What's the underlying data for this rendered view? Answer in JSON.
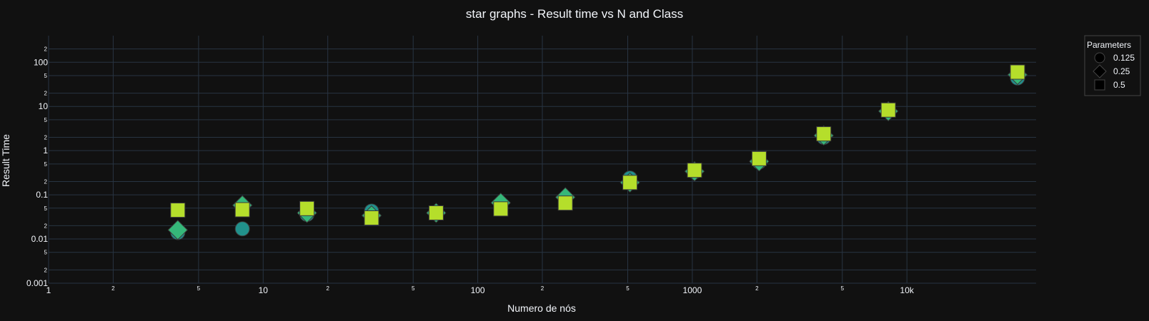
{
  "chart_data": {
    "type": "scatter",
    "title": "star graphs - Result time vs N and Class",
    "xlabel": "Numero de nós",
    "ylabel": "Result Time",
    "x_scale": "log",
    "y_scale": "log",
    "xlim": [
      1,
      40000
    ],
    "ylim": [
      0.001,
      400
    ],
    "x_ticks": {
      "major": [
        {
          "v": 1,
          "label": "1"
        },
        {
          "v": 10,
          "label": "10"
        },
        {
          "v": 100,
          "label": "100"
        },
        {
          "v": 1000,
          "label": "1000"
        },
        {
          "v": 10000,
          "label": "10k"
        }
      ],
      "minor": [
        {
          "v": 2,
          "label": "2"
        },
        {
          "v": 5,
          "label": "5"
        },
        {
          "v": 20,
          "label": "2"
        },
        {
          "v": 50,
          "label": "5"
        },
        {
          "v": 200,
          "label": "2"
        },
        {
          "v": 500,
          "label": "5"
        },
        {
          "v": 2000,
          "label": "2"
        },
        {
          "v": 5000,
          "label": "5"
        }
      ]
    },
    "y_ticks": {
      "major": [
        {
          "v": 0.001,
          "label": "0.001"
        },
        {
          "v": 0.01,
          "label": "0.01"
        },
        {
          "v": 0.1,
          "label": "0.1"
        },
        {
          "v": 1,
          "label": "1"
        },
        {
          "v": 10,
          "label": "10"
        },
        {
          "v": 100,
          "label": "100"
        }
      ],
      "minor": [
        {
          "v": 0.002,
          "label": "2"
        },
        {
          "v": 0.005,
          "label": "5"
        },
        {
          "v": 0.02,
          "label": "2"
        },
        {
          "v": 0.05,
          "label": "5"
        },
        {
          "v": 0.2,
          "label": "2"
        },
        {
          "v": 0.5,
          "label": "5"
        },
        {
          "v": 2,
          "label": "2"
        },
        {
          "v": 5,
          "label": "5"
        },
        {
          "v": 20,
          "label": "2"
        },
        {
          "v": 50,
          "label": "5"
        },
        {
          "v": 200,
          "label": "2"
        }
      ]
    },
    "grid": true,
    "legend": {
      "title": "Parameters",
      "position": "top-right"
    },
    "series": [
      {
        "name": "0.125",
        "marker": "circle",
        "x": [
          4,
          8,
          16,
          32,
          64,
          128,
          256,
          512,
          1024,
          2048,
          4096,
          8192,
          32768
        ],
        "y": [
          0.014,
          0.017,
          0.036,
          0.043,
          0.038,
          0.062,
          0.085,
          0.24,
          0.33,
          0.55,
          2.0,
          8.0,
          44
        ]
      },
      {
        "name": "0.25",
        "marker": "diamond",
        "x": [
          4,
          8,
          16,
          32,
          64,
          128,
          256,
          512,
          1024,
          2048,
          4096,
          8192,
          32768
        ],
        "y": [
          0.016,
          0.058,
          0.039,
          0.034,
          0.039,
          0.066,
          0.088,
          0.19,
          0.34,
          0.57,
          2.2,
          7.8,
          52
        ]
      },
      {
        "name": "0.5",
        "marker": "square",
        "x": [
          4,
          8,
          16,
          32,
          64,
          128,
          256,
          512,
          1024,
          2048,
          4096,
          8192,
          32768
        ],
        "y": [
          0.045,
          0.046,
          0.049,
          0.03,
          0.039,
          0.048,
          0.065,
          0.19,
          0.36,
          0.66,
          2.4,
          8.3,
          60
        ]
      }
    ],
    "colors": {
      "background": "#111111",
      "grid": "#283442",
      "square": "#b5de2b",
      "circle": "#21918c",
      "diamond": "#35b779",
      "outline": "#3b3b3b",
      "text": "#f2f5fa"
    }
  }
}
